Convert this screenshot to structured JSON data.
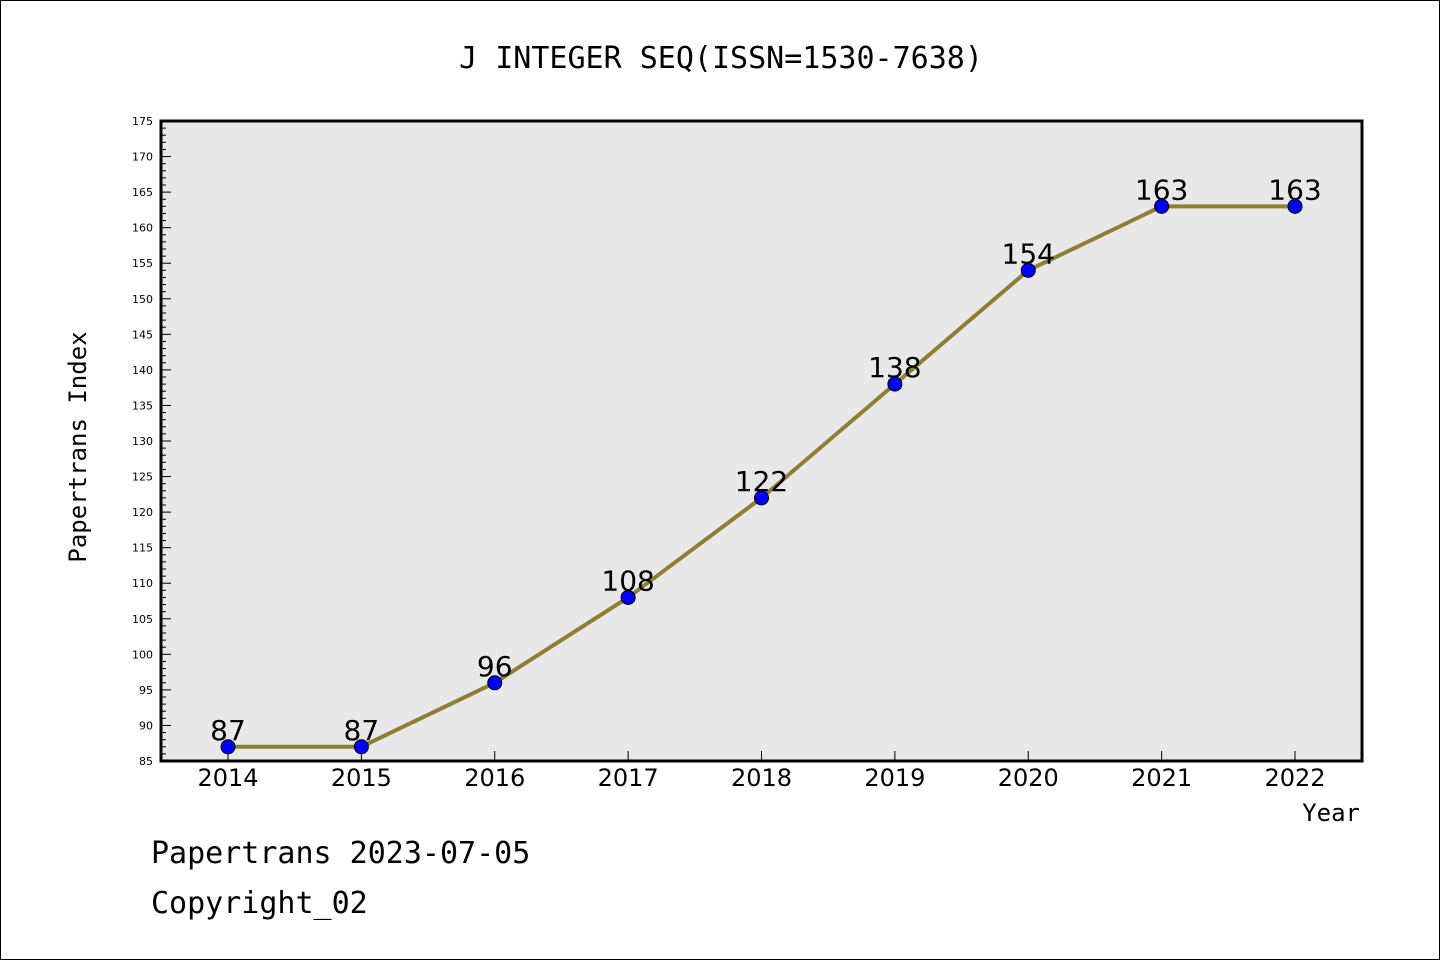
{
  "chart_data": {
    "type": "line",
    "title": "J INTEGER SEQ(ISSN=1530-7638)",
    "xlabel": "Year",
    "ylabel": "Papertrans Index",
    "categories": [
      "2014",
      "2015",
      "2016",
      "2017",
      "2018",
      "2019",
      "2020",
      "2021",
      "2022"
    ],
    "series": [
      {
        "values": [
          87,
          87,
          96,
          108,
          122,
          138,
          154,
          163,
          163
        ]
      }
    ],
    "data_labels": [
      "87",
      "87",
      "96",
      "108",
      "122",
      "138",
      "154",
      "163",
      "163"
    ],
    "ylim": [
      85,
      175
    ],
    "y_ticks": [
      "85",
      "90",
      "95",
      "100",
      "105",
      "110",
      "115",
      "120",
      "125",
      "130",
      "135",
      "140",
      "145",
      "150",
      "155",
      "160",
      "165",
      "170",
      "175"
    ],
    "y_tick_values": [
      85,
      90,
      95,
      100,
      105,
      110,
      115,
      120,
      125,
      130,
      135,
      140,
      145,
      150,
      155,
      160,
      165,
      170,
      175
    ],
    "y_minor_step": 1,
    "grid": false,
    "colors": {
      "line": "#8F7F34",
      "marker": "#0000FF",
      "plot_background": "#E8E8E8"
    }
  },
  "footer": {
    "date_line": "Papertrans 2023-07-05",
    "copyright": "Copyright_02"
  }
}
